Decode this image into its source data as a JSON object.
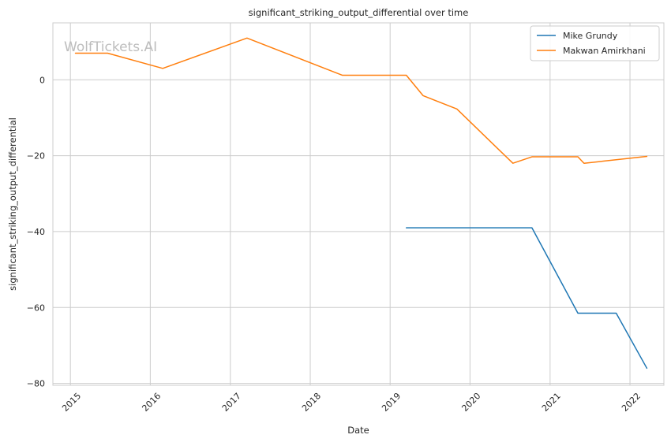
{
  "chart_data": {
    "type": "line",
    "title": "significant_striking_output_differential over time",
    "xlabel": "Date",
    "ylabel": "significant_striking_output_differential",
    "watermark": "WolfTickets.AI",
    "x_is_date": true,
    "xlim": [
      "2014-10-13",
      "2022-06-05"
    ],
    "ylim": [
      -80.5,
      15
    ],
    "x_ticks": [
      "2015",
      "2016",
      "2017",
      "2018",
      "2019",
      "2020",
      "2021",
      "2022"
    ],
    "y_ticks": [
      0,
      -20,
      -40,
      -60,
      -80
    ],
    "y_tick_labels": [
      "0",
      "−20",
      "−40",
      "−60",
      "−80"
    ],
    "grid": true,
    "legend_position": "top-right",
    "series": [
      {
        "name": "Mike Grundy",
        "color": "#1f77b4",
        "points": [
          [
            "2019-03-16",
            -39.0
          ],
          [
            "2020-10-10",
            -39.0
          ],
          [
            "2021-05-08",
            -61.5
          ],
          [
            "2021-10-30",
            -61.5
          ],
          [
            "2022-03-19",
            -76.0
          ]
        ]
      },
      {
        "name": "Makwan Amirkhani",
        "color": "#ff7f0e",
        "points": [
          [
            "2015-01-24",
            7.0
          ],
          [
            "2015-06-20",
            7.0
          ],
          [
            "2016-02-27",
            3.0
          ],
          [
            "2017-03-18",
            11.0
          ],
          [
            "2018-05-27",
            1.2
          ],
          [
            "2019-03-16",
            1.2
          ],
          [
            "2019-06-01",
            -4.2
          ],
          [
            "2019-11-02",
            -7.7
          ],
          [
            "2020-07-15",
            -22.0
          ],
          [
            "2020-10-10",
            -20.3
          ],
          [
            "2021-05-08",
            -20.3
          ],
          [
            "2021-06-05",
            -22.0
          ],
          [
            "2022-03-19",
            -20.2
          ]
        ]
      }
    ]
  }
}
